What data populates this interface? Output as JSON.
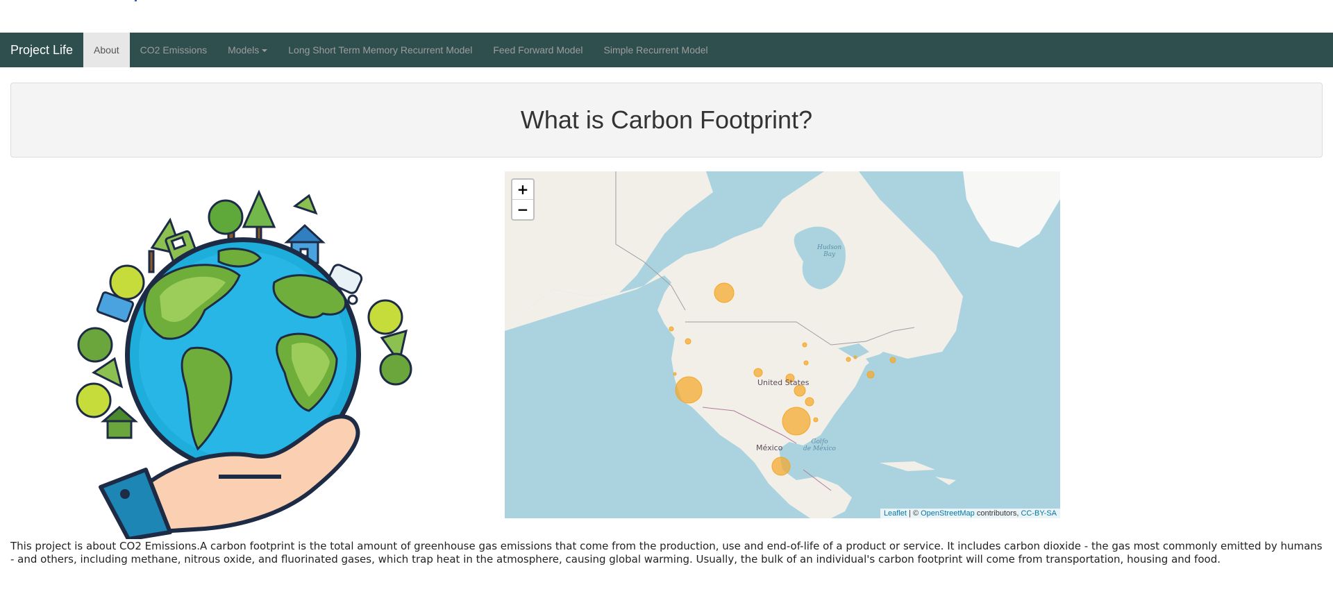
{
  "navbar": {
    "brand": "Project Life",
    "items": [
      {
        "label": "About",
        "active": true
      },
      {
        "label": "CO2 Emissions",
        "active": false
      },
      {
        "label": "Models",
        "active": false,
        "dropdown": true
      },
      {
        "label": "Long Short Term Memory Recurrent Model",
        "active": false
      },
      {
        "label": "Feed Forward Model",
        "active": false
      },
      {
        "label": "Simple Recurrent Model",
        "active": false
      }
    ]
  },
  "header": {
    "title": "What is Carbon Footprint?"
  },
  "illustration": {
    "icon": "earth-in-hand-illustration"
  },
  "map": {
    "zoom_in": "+",
    "zoom_out": "−",
    "labels": {
      "bay": "Hudson\nBay",
      "us": "United States",
      "mexico": "México",
      "gulf": "Golfo\nde México"
    },
    "attribution": {
      "leaflet": "Leaflet",
      "separator": "| ©",
      "osm": "OpenStreetMap",
      "contributors": "contributors,",
      "license": "CC-BY-SA"
    },
    "marker_color": "#f5a623"
  },
  "description": "This project is about CO2 Emissions.A carbon footprint is the total amount of greenhouse gas emissions that come from the production, use and end-of-life of a product or service. It includes carbon dioxide - the gas most commonly emitted by humans - and others, including methane, nitrous oxide, and fluorinated gases, which trap heat in the atmosphere, causing global warming. Usually, the bulk of an individual's carbon footprint will come from transportation, housing and food."
}
